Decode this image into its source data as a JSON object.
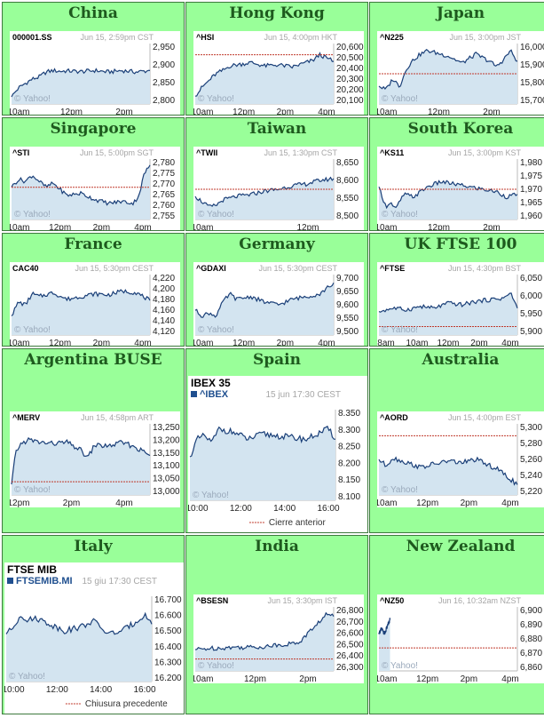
{
  "colors": {
    "cell_bg": "#99ff99",
    "title": "#1e5a1e",
    "line": "#1a3f78",
    "area": "#d3e4f0",
    "prev_close": "#c0392b"
  },
  "chart_data": [
    {
      "type": "area",
      "title": "China",
      "symbol": "000001.SS",
      "meta": "Jun 15, 2:59pm CST",
      "yticks": [
        "2,950",
        "2,900",
        "2,850",
        "2,800"
      ],
      "ylim": [
        2790,
        2960
      ],
      "xticks": [
        "10am",
        "12pm",
        "2pm"
      ],
      "x": [
        0,
        0.05,
        0.1,
        0.15,
        0.2,
        0.25,
        0.3,
        0.35,
        0.4,
        0.5,
        0.6,
        0.7,
        0.8,
        0.9,
        1.0
      ],
      "values": [
        2810,
        2835,
        2848,
        2860,
        2866,
        2880,
        2884,
        2882,
        2883,
        2881,
        2884,
        2880,
        2884,
        2880,
        2884
      ],
      "prev_close": null
    },
    {
      "type": "area",
      "title": "Hong Kong",
      "symbol": "^HSI",
      "meta": "Jun 15, 4:00pm HKT",
      "yticks": [
        "20,600",
        "20,500",
        "20,400",
        "20,300",
        "20,200",
        "20,100"
      ],
      "ylim": [
        20080,
        20620
      ],
      "xticks": [
        "10am",
        "12pm",
        "2pm",
        "4pm"
      ],
      "x": [
        0,
        0.05,
        0.1,
        0.15,
        0.2,
        0.25,
        0.3,
        0.35,
        0.4,
        0.5,
        0.6,
        0.7,
        0.8,
        0.85,
        0.9,
        0.95,
        1.0
      ],
      "values": [
        20150,
        20230,
        20290,
        20350,
        20380,
        20420,
        20430,
        20440,
        20450,
        20420,
        20430,
        20410,
        20450,
        20470,
        20520,
        20490,
        20460
      ],
      "prev_close": 20520
    },
    {
      "type": "area",
      "title": "Japan",
      "symbol": "^N225",
      "meta": "Jun 15, 3:00pm JST",
      "yticks": [
        "16,000",
        "15,900",
        "15,800",
        "15,700"
      ],
      "ylim": [
        15680,
        16020
      ],
      "xticks": [
        "10am",
        "12pm",
        "2pm"
      ],
      "x": [
        0,
        0.05,
        0.1,
        0.15,
        0.2,
        0.25,
        0.3,
        0.35,
        0.4,
        0.5,
        0.6,
        0.7,
        0.8,
        0.85,
        0.9,
        0.95,
        1.0
      ],
      "values": [
        15780,
        15760,
        15820,
        15780,
        15880,
        15930,
        15960,
        15980,
        15970,
        15950,
        15910,
        15960,
        15920,
        15890,
        15930,
        15980,
        15920
      ],
      "prev_close": 15850
    },
    {
      "type": "area",
      "title": "Singapore",
      "symbol": "^STI",
      "meta": "Jun 15, 5:00pm SGT",
      "yticks": [
        "2,780",
        "2,775",
        "2,770",
        "2,765",
        "2,760",
        "2,755"
      ],
      "ylim": [
        2752,
        2782
      ],
      "xticks": [
        "10am",
        "12pm",
        "2pm",
        "4pm"
      ],
      "x": [
        0,
        0.05,
        0.1,
        0.15,
        0.2,
        0.25,
        0.3,
        0.4,
        0.5,
        0.6,
        0.7,
        0.8,
        0.88,
        0.92,
        0.96,
        1.0
      ],
      "values": [
        2768,
        2772,
        2771,
        2774,
        2771,
        2768,
        2770,
        2764,
        2765,
        2762,
        2760,
        2761,
        2760,
        2764,
        2775,
        2779
      ],
      "prev_close": 2768
    },
    {
      "type": "area",
      "title": "Taiwan",
      "symbol": "^TWII",
      "meta": "Jun 15, 1:30pm CST",
      "yticks": [
        "8,650",
        "8,600",
        "8,550",
        "8,500"
      ],
      "ylim": [
        8490,
        8660
      ],
      "xticks": [
        "10am",
        "12pm"
      ],
      "x": [
        0,
        0.05,
        0.1,
        0.15,
        0.2,
        0.3,
        0.4,
        0.5,
        0.6,
        0.7,
        0.8,
        0.9,
        1.0
      ],
      "values": [
        8555,
        8540,
        8525,
        8530,
        8545,
        8555,
        8560,
        8570,
        8575,
        8585,
        8590,
        8600,
        8605
      ],
      "prev_close": 8575
    },
    {
      "type": "area",
      "title": "South Korea",
      "symbol": "^KS11",
      "meta": "Jun 15, 3:00pm KST",
      "yticks": [
        "1,980",
        "1,975",
        "1,970",
        "1,965",
        "1,960"
      ],
      "ylim": [
        1958,
        1982
      ],
      "xticks": [
        "10am",
        "12pm",
        "2pm"
      ],
      "x": [
        0,
        0.05,
        0.08,
        0.12,
        0.18,
        0.25,
        0.35,
        0.45,
        0.55,
        0.65,
        0.75,
        0.85,
        0.92,
        1.0
      ],
      "values": [
        1971,
        1963,
        1965,
        1962,
        1968,
        1967,
        1971,
        1973,
        1972,
        1971,
        1970,
        1969,
        1967,
        1968
      ],
      "prev_close": 1970
    },
    {
      "type": "area",
      "title": "France",
      "symbol": "CAC40",
      "meta": "Jun 15, 5:30pm CEST",
      "yticks": [
        "4,220",
        "4,200",
        "4,180",
        "4,160",
        "4,140",
        "4,120"
      ],
      "ylim": [
        4115,
        4225
      ],
      "xticks": [
        "10am",
        "12pm",
        "2pm",
        "4pm"
      ],
      "x": [
        0,
        0.05,
        0.1,
        0.15,
        0.2,
        0.3,
        0.4,
        0.5,
        0.6,
        0.7,
        0.8,
        0.9,
        1.0
      ],
      "values": [
        4150,
        4175,
        4170,
        4190,
        4185,
        4192,
        4180,
        4185,
        4190,
        4188,
        4195,
        4192,
        4178
      ],
      "prev_close": null
    },
    {
      "type": "area",
      "title": "Germany",
      "symbol": "^GDAXI",
      "meta": "Jun 15, 5:30pm CEST",
      "yticks": [
        "9,700",
        "9,650",
        "9,600",
        "9,550",
        "9,500"
      ],
      "ylim": [
        9490,
        9710
      ],
      "xticks": [
        "10am",
        "12pm",
        "2pm",
        "4pm"
      ],
      "x": [
        0,
        0.05,
        0.1,
        0.15,
        0.2,
        0.25,
        0.3,
        0.4,
        0.5,
        0.6,
        0.7,
        0.8,
        0.9,
        1.0
      ],
      "values": [
        9580,
        9560,
        9570,
        9560,
        9610,
        9640,
        9620,
        9630,
        9610,
        9600,
        9620,
        9630,
        9640,
        9680
      ],
      "prev_close": null
    },
    {
      "type": "area",
      "title": "UK FTSE 100",
      "symbol": "^FTSE",
      "meta": "Jun 15, 4:30pm BST",
      "yticks": [
        "6,050",
        "6,000",
        "5,950",
        "5,900"
      ],
      "ylim": [
        5880,
        6060
      ],
      "xticks": [
        "8am",
        "10am",
        "12pm",
        "2pm",
        "4pm"
      ],
      "x": [
        0,
        0.1,
        0.2,
        0.3,
        0.4,
        0.5,
        0.6,
        0.7,
        0.8,
        0.9,
        0.95,
        1.0
      ],
      "values": [
        5950,
        5960,
        5955,
        5965,
        5960,
        5975,
        5970,
        5980,
        5985,
        5990,
        6005,
        5960
      ],
      "prev_close": 5905
    },
    {
      "type": "area",
      "title": "Argentina BUSE",
      "symbol": "^MERV",
      "meta": "Jun 15, 4:58pm ART",
      "yticks": [
        "13,250",
        "13,200",
        "13,150",
        "13,100",
        "13,050",
        "13,000"
      ],
      "ylim": [
        12990,
        13260
      ],
      "xticks": [
        "12pm",
        "2pm",
        "4pm"
      ],
      "x": [
        0,
        0.03,
        0.06,
        0.12,
        0.2,
        0.3,
        0.4,
        0.5,
        0.55,
        0.6,
        0.7,
        0.8,
        0.9,
        1.0
      ],
      "values": [
        13030,
        13150,
        13180,
        13200,
        13190,
        13185,
        13190,
        13160,
        13130,
        13180,
        13175,
        13190,
        13170,
        13140
      ],
      "prev_close": 13040
    },
    {
      "type": "area",
      "title": "Spain",
      "header": "IBEX 35",
      "symbol": "^IBEX",
      "meta": "15 jun 17:30 CEST",
      "legend": "Cierre anterior",
      "yticks": [
        "8.350",
        "8.300",
        "8.250",
        "8.200",
        "8.150",
        "8.100"
      ],
      "ylim": [
        8095,
        8355
      ],
      "xticks": [
        "10:00",
        "12:00",
        "14:00",
        "16:00"
      ],
      "x": [
        0,
        0.05,
        0.1,
        0.15,
        0.2,
        0.3,
        0.4,
        0.5,
        0.6,
        0.7,
        0.8,
        0.9,
        0.95,
        1.0
      ],
      "values": [
        8220,
        8270,
        8280,
        8260,
        8300,
        8290,
        8270,
        8285,
        8280,
        8275,
        8270,
        8290,
        8300,
        8270
      ],
      "prev_close": null
    },
    {
      "type": "area",
      "title": "Australia",
      "symbol": "^AORD",
      "meta": "Jun 15, 4:00pm EST",
      "yticks": [
        "5,300",
        "5,280",
        "5,260",
        "5,240",
        "5,220"
      ],
      "ylim": [
        5215,
        5305
      ],
      "xticks": [
        "10am",
        "12pm",
        "2pm",
        "4pm"
      ],
      "x": [
        0,
        0.05,
        0.1,
        0.2,
        0.3,
        0.4,
        0.5,
        0.6,
        0.7,
        0.8,
        0.85,
        0.9,
        0.95,
        1.0
      ],
      "values": [
        5260,
        5252,
        5262,
        5256,
        5250,
        5254,
        5258,
        5256,
        5260,
        5252,
        5248,
        5242,
        5235,
        5228
      ],
      "prev_close": 5290
    },
    {
      "type": "area",
      "title": "Italy",
      "header": "FTSE MIB",
      "symbol": "FTSEMIB.MI",
      "meta": "15 giu 17:30 CEST",
      "legend": "Chiusura precedente",
      "yticks": [
        "16.700",
        "16.600",
        "16.500",
        "16.400",
        "16.300",
        "16.200"
      ],
      "ylim": [
        16190,
        16710
      ],
      "xticks": [
        "10:00",
        "12:00",
        "14:00",
        "16:00"
      ],
      "x": [
        0,
        0.05,
        0.1,
        0.15,
        0.2,
        0.3,
        0.4,
        0.5,
        0.6,
        0.7,
        0.8,
        0.9,
        0.95,
        1.0
      ],
      "values": [
        16480,
        16520,
        16600,
        16560,
        16580,
        16540,
        16500,
        16520,
        16560,
        16480,
        16500,
        16560,
        16600,
        16540
      ],
      "prev_close": null
    },
    {
      "type": "area",
      "title": "India",
      "symbol": "^BSESN",
      "meta": "Jun 15, 3:30pm IST",
      "yticks": [
        "26,800",
        "26,700",
        "26,600",
        "26,500",
        "26,400",
        "26,300"
      ],
      "ylim": [
        26280,
        26820
      ],
      "xticks": [
        "10am",
        "12pm",
        "2pm"
      ],
      "x": [
        0,
        0.1,
        0.2,
        0.3,
        0.4,
        0.5,
        0.6,
        0.7,
        0.75,
        0.8,
        0.85,
        0.9,
        0.95,
        1.0
      ],
      "values": [
        26460,
        26470,
        26475,
        26480,
        26480,
        26485,
        26500,
        26510,
        26520,
        26580,
        26640,
        26700,
        26760,
        26740
      ],
      "prev_close": 26380
    },
    {
      "type": "area",
      "title": "New Zealand",
      "symbol": "^NZ50",
      "meta": "Jun 16, 10:32am NZST",
      "yticks": [
        "6,900",
        "6,890",
        "6,880",
        "6,870",
        "6,860"
      ],
      "ylim": [
        6855,
        6905
      ],
      "xticks": [
        "10am",
        "12pm",
        "2pm",
        "4pm"
      ],
      "x": [
        0,
        0.02,
        0.04,
        0.06,
        0.08
      ],
      "values": [
        6885,
        6888,
        6884,
        6890,
        6895
      ],
      "prev_close": 6873
    }
  ]
}
